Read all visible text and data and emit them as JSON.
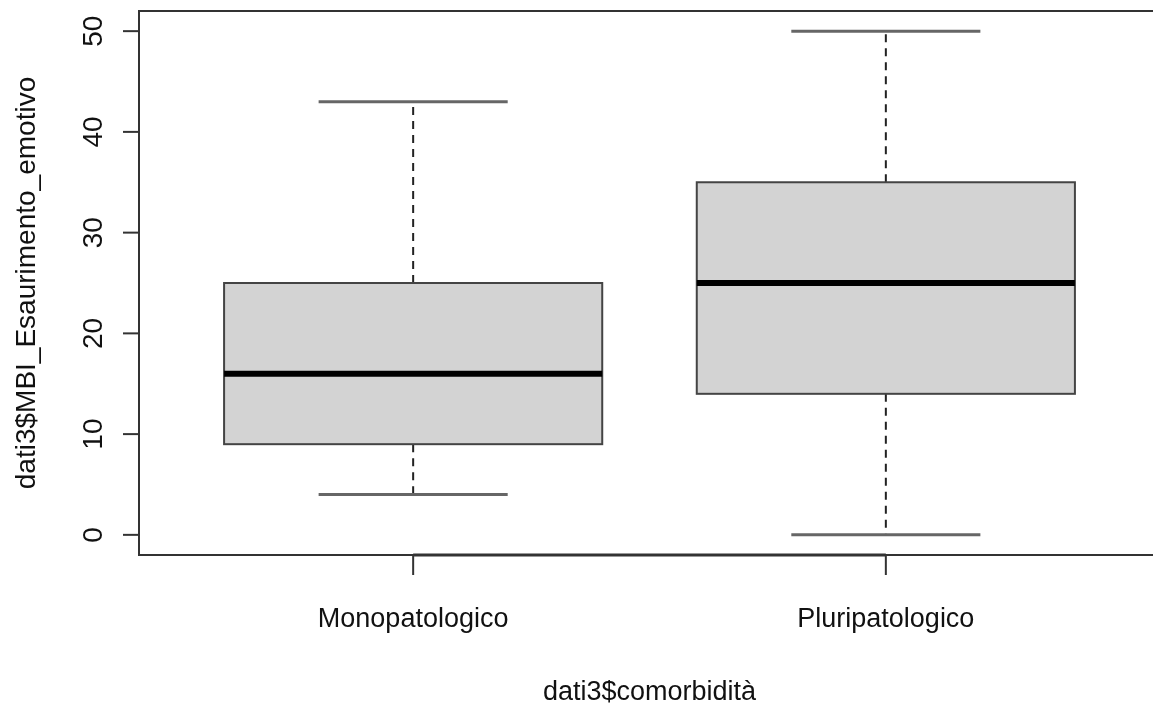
{
  "chart_data": {
    "type": "box",
    "xlabel": "dati3$comorbidità",
    "ylabel": "dati3$MBI_Esaurimento_emotivo",
    "categories": [
      "Monopatologico",
      "Pluripatologico"
    ],
    "boxes": [
      {
        "low": 4,
        "q1": 9,
        "median": 16,
        "q3": 25,
        "high": 43
      },
      {
        "low": 0,
        "q1": 14,
        "median": 25,
        "q3": 35,
        "high": 50
      }
    ],
    "color": "#d3d3d3",
    "ylim": [
      -2,
      52
    ],
    "yticks": [
      0,
      10,
      20,
      30,
      40,
      50
    ]
  }
}
